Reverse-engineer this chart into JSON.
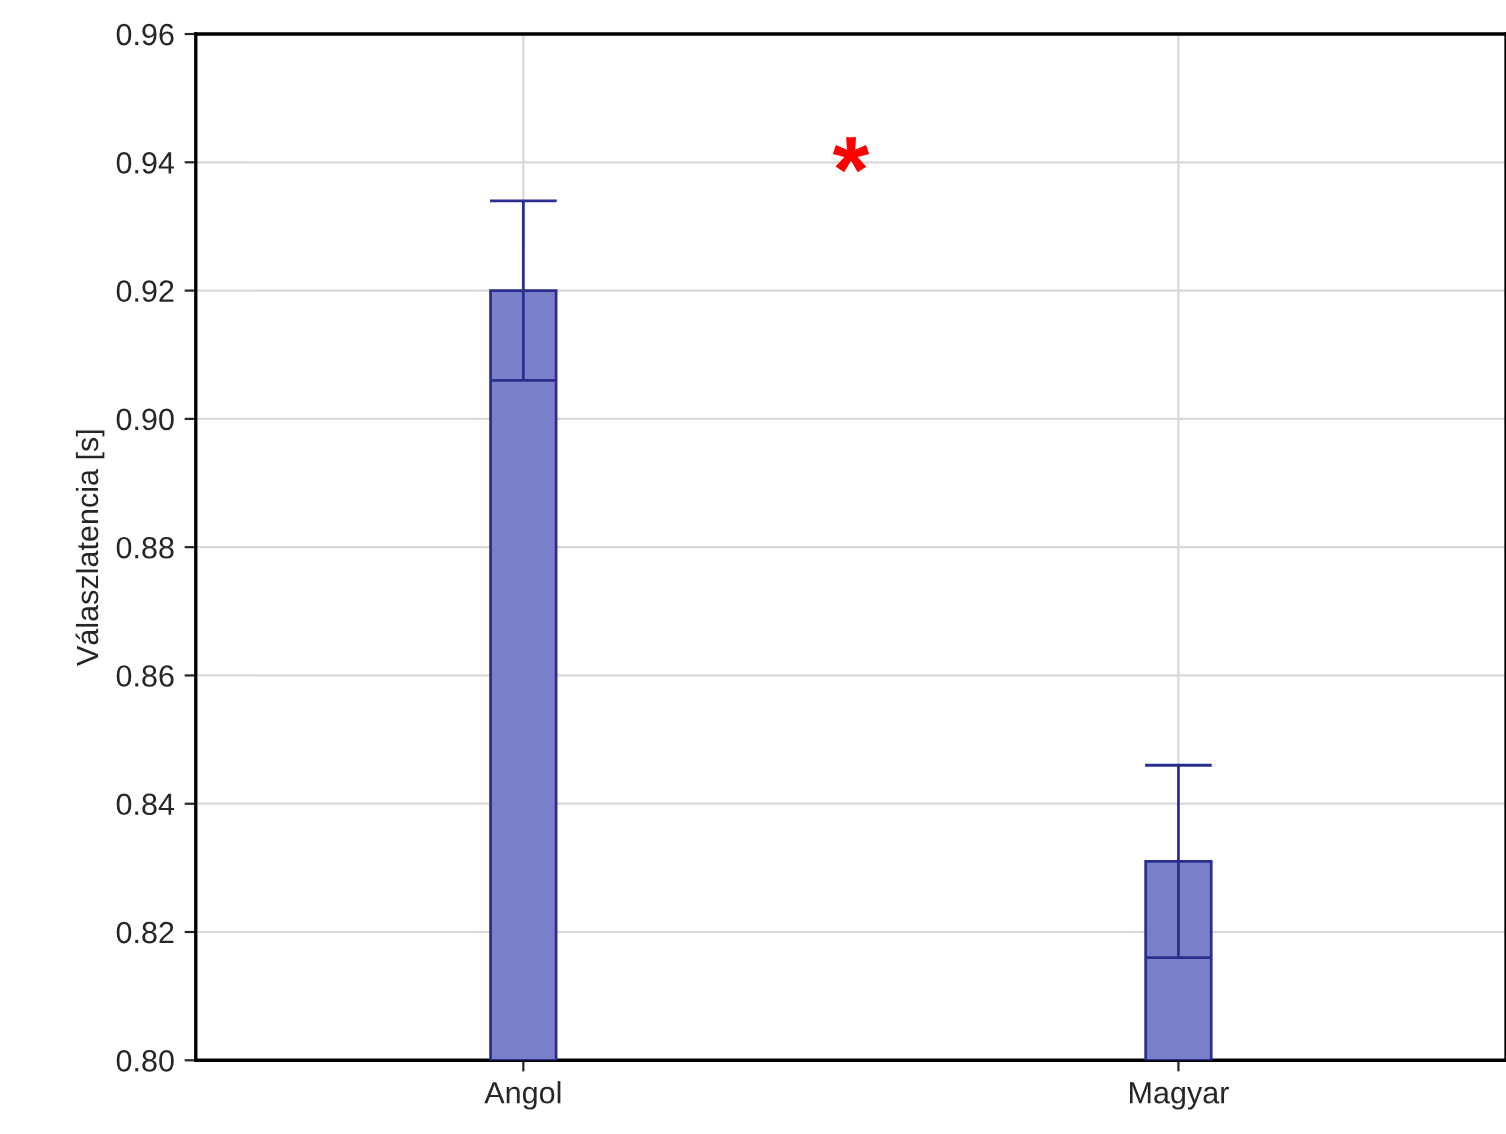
{
  "chart_data": {
    "type": "bar",
    "categories": [
      "Angol",
      "Magyar"
    ],
    "values": [
      0.92,
      0.831
    ],
    "errors": [
      0.014,
      0.015
    ],
    "color": "#7a80c8",
    "ylabel": "Válaszlatencia [s]",
    "ylim": [
      0.8,
      0.96
    ],
    "yticks": [
      {
        "value": 0.8,
        "label": "0.80"
      },
      {
        "value": 0.82,
        "label": "0.82"
      },
      {
        "value": 0.84,
        "label": "0.84"
      },
      {
        "value": 0.86,
        "label": "0.86"
      },
      {
        "value": 0.88,
        "label": "0.88"
      },
      {
        "value": 0.9,
        "label": "0.90"
      },
      {
        "value": 0.92,
        "label": "0.92"
      },
      {
        "value": 0.94,
        "label": "0.94"
      },
      {
        "value": 0.96,
        "label": "0.96"
      }
    ],
    "grid": true,
    "annotations": [
      "*"
    ]
  }
}
